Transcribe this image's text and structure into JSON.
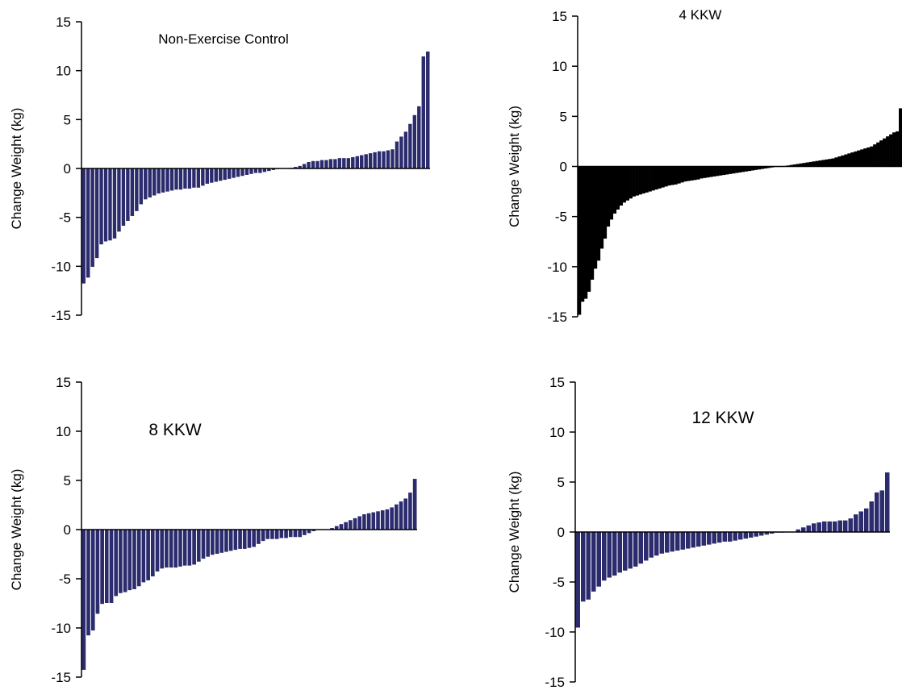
{
  "colors": {
    "bar_fill": "#2b2b6e",
    "bar_edge": "#ffffff",
    "solid_fill": "#000000",
    "axis": "#000000"
  },
  "chart_data": [
    {
      "type": "bar",
      "title": "Non-Exercise Control",
      "xlabel": "",
      "ylabel": "Change Weight (kg)",
      "ylim": [
        -15,
        15
      ],
      "yticks": [
        15,
        10,
        5,
        0,
        -5,
        -10,
        -15
      ],
      "style": "outlined",
      "grid": false,
      "values": [
        -11.8,
        -11.2,
        -10.1,
        -9.2,
        -7.8,
        -7.5,
        -7.4,
        -7.2,
        -6.5,
        -5.9,
        -5.4,
        -4.9,
        -4.4,
        -3.7,
        -3.2,
        -3.0,
        -2.8,
        -2.6,
        -2.5,
        -2.4,
        -2.3,
        -2.2,
        -2.2,
        -2.1,
        -2.1,
        -2.0,
        -2.0,
        -1.8,
        -1.6,
        -1.5,
        -1.4,
        -1.3,
        -1.2,
        -1.1,
        -1.0,
        -0.9,
        -0.8,
        -0.7,
        -0.6,
        -0.5,
        -0.5,
        -0.4,
        -0.3,
        -0.2,
        -0.1,
        0.0,
        0.0,
        0.1,
        0.2,
        0.3,
        0.5,
        0.7,
        0.8,
        0.8,
        0.9,
        0.9,
        1.0,
        1.0,
        1.1,
        1.1,
        1.1,
        1.2,
        1.3,
        1.4,
        1.5,
        1.6,
        1.7,
        1.8,
        1.8,
        1.9,
        2.0,
        2.8,
        3.3,
        3.8,
        4.6,
        5.5,
        6.4,
        11.5,
        12.0
      ]
    },
    {
      "type": "bar",
      "title": "4 KKW",
      "xlabel": "",
      "ylabel": "Change Weight (kg)",
      "ylim": [
        -15,
        15
      ],
      "yticks": [
        15,
        10,
        5,
        0,
        -5,
        -10,
        -15
      ],
      "style": "solid",
      "grid": false,
      "values": [
        -14.8,
        -13.5,
        -13.2,
        -12.5,
        -11.3,
        -10.2,
        -9.4,
        -8.2,
        -7.2,
        -6.0,
        -5.3,
        -4.7,
        -4.3,
        -3.9,
        -3.6,
        -3.4,
        -3.2,
        -3.0,
        -2.9,
        -2.8,
        -2.7,
        -2.6,
        -2.5,
        -2.4,
        -2.3,
        -2.2,
        -2.1,
        -2.0,
        -1.9,
        -1.85,
        -1.8,
        -1.7,
        -1.6,
        -1.5,
        -1.45,
        -1.4,
        -1.35,
        -1.3,
        -1.2,
        -1.15,
        -1.1,
        -1.05,
        -1.0,
        -0.95,
        -0.9,
        -0.85,
        -0.8,
        -0.75,
        -0.7,
        -0.65,
        -0.6,
        -0.55,
        -0.5,
        -0.45,
        -0.4,
        -0.35,
        -0.3,
        -0.25,
        -0.2,
        -0.15,
        -0.1,
        -0.05,
        0.0,
        0.0,
        0.05,
        0.1,
        0.15,
        0.2,
        0.25,
        0.3,
        0.35,
        0.4,
        0.45,
        0.5,
        0.55,
        0.6,
        0.65,
        0.7,
        0.75,
        0.8,
        0.9,
        1.0,
        1.1,
        1.2,
        1.3,
        1.4,
        1.5,
        1.6,
        1.7,
        1.8,
        1.9,
        2.0,
        2.2,
        2.4,
        2.6,
        2.8,
        3.0,
        3.2,
        3.4,
        3.5,
        5.8
      ]
    },
    {
      "type": "bar",
      "title": "8 KKW",
      "xlabel": "",
      "ylabel": "Change Weight (kg)",
      "ylim": [
        -15,
        15
      ],
      "yticks": [
        15,
        10,
        5,
        0,
        -5,
        -10,
        -15
      ],
      "style": "outlined",
      "grid": false,
      "values": [
        -14.3,
        -10.8,
        -10.3,
        -8.6,
        -7.6,
        -7.5,
        -7.5,
        -6.8,
        -6.5,
        -6.4,
        -6.2,
        -6.1,
        -5.8,
        -5.4,
        -5.2,
        -4.8,
        -4.3,
        -4.0,
        -3.9,
        -3.9,
        -3.9,
        -3.8,
        -3.7,
        -3.7,
        -3.6,
        -3.3,
        -3.0,
        -2.8,
        -2.6,
        -2.5,
        -2.4,
        -2.3,
        -2.2,
        -2.1,
        -2.0,
        -2.0,
        -1.9,
        -1.8,
        -1.5,
        -1.2,
        -1.0,
        -1.0,
        -1.0,
        -0.9,
        -0.9,
        -0.8,
        -0.8,
        -0.8,
        -0.6,
        -0.4,
        -0.2,
        0.0,
        0.0,
        0.0,
        0.2,
        0.4,
        0.6,
        0.8,
        1.0,
        1.2,
        1.4,
        1.6,
        1.7,
        1.8,
        1.9,
        2.0,
        2.1,
        2.3,
        2.6,
        2.9,
        3.2,
        3.8,
        5.2
      ]
    },
    {
      "type": "bar",
      "title": "12 KKW",
      "xlabel": "",
      "ylabel": "Change Weight (kg)",
      "ylim": [
        -15,
        15
      ],
      "yticks": [
        15,
        10,
        5,
        0,
        -5,
        -10,
        -15
      ],
      "style": "outlined",
      "grid": false,
      "values": [
        -9.6,
        -7.0,
        -6.8,
        -6.0,
        -5.5,
        -4.9,
        -4.6,
        -4.4,
        -4.1,
        -3.9,
        -3.7,
        -3.5,
        -3.2,
        -2.9,
        -2.6,
        -2.4,
        -2.2,
        -2.1,
        -2.0,
        -1.9,
        -1.8,
        -1.7,
        -1.6,
        -1.5,
        -1.4,
        -1.3,
        -1.2,
        -1.1,
        -1.0,
        -1.0,
        -0.9,
        -0.8,
        -0.7,
        -0.6,
        -0.5,
        -0.4,
        -0.3,
        -0.2,
        -0.1,
        -0.1,
        0.0,
        0.0,
        0.3,
        0.5,
        0.7,
        0.9,
        1.0,
        1.1,
        1.1,
        1.1,
        1.2,
        1.2,
        1.4,
        1.8,
        2.1,
        2.4,
        3.1,
        4.0,
        4.2,
        6.0
      ]
    }
  ]
}
